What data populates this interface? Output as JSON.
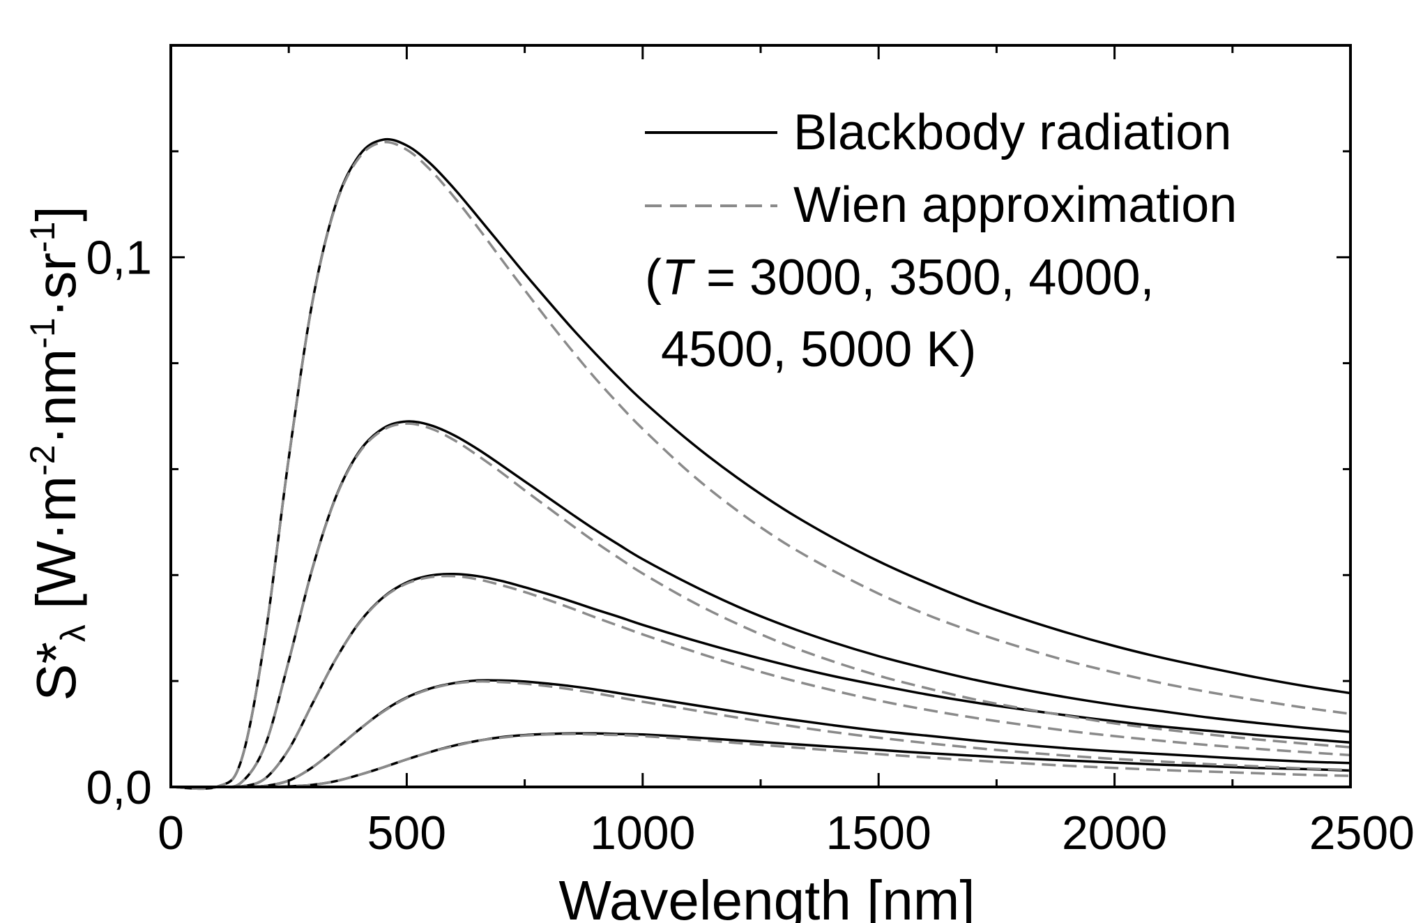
{
  "chart_data": {
    "type": "line",
    "title": "",
    "xlabel": "Wavelength [nm]",
    "ylabel": {
      "main": "S*",
      "sub": "λ",
      "units": " [W·m",
      "units_sup1": "-2",
      "units_mid": "·nm",
      "units_sup2": "-1",
      "units_mid2": "·sr",
      "units_sup3": "-1",
      "units_end": "]"
    },
    "xlim": [
      0,
      2500
    ],
    "ylim": [
      0,
      0.14
    ],
    "x_ticks": [
      0,
      500,
      1000,
      1500,
      2000,
      2500
    ],
    "x_tick_labels": [
      "0",
      "500",
      "1000",
      "1500",
      "2000",
      "2500"
    ],
    "y_ticks": [
      0.0,
      0.1
    ],
    "y_tick_labels": [
      "0,0",
      "0,1"
    ],
    "y_minor_step": 0.02,
    "x_minor_step": 250,
    "grid": false,
    "legend_position": "top-right",
    "legend": [
      {
        "name": "Blackbody radiation",
        "style": "solid",
        "color": "#000000"
      },
      {
        "name": "Wien approximation",
        "style": "dashed",
        "color": "#8a8a8a"
      }
    ],
    "annotation": {
      "open": "(",
      "italic": "T",
      "line1_rest": " = 3000, 3500, 4000,",
      "line2": "4500, 5000 K)"
    },
    "temperatures_K": [
      3000,
      3500,
      4000,
      4500,
      5000
    ],
    "x": [
      0,
      100,
      150,
      200,
      250,
      300,
      350,
      400,
      450,
      500,
      550,
      600,
      650,
      700,
      750,
      800,
      850,
      900,
      950,
      1000,
      1100,
      1200,
      1300,
      1400,
      1500,
      1600,
      1700,
      1800,
      1900,
      2000,
      2100,
      2200,
      2300,
      2400,
      2500
    ],
    "series": [
      {
        "temperature": 3000,
        "kind": "blackbody",
        "values": [
          0,
          0,
          0,
          0,
          0.0001,
          0.0004,
          0.0011,
          0.0023,
          0.0037,
          0.0052,
          0.0066,
          0.0078,
          0.0087,
          0.0094,
          0.0098,
          0.01,
          0.0101,
          0.0101,
          0.01,
          0.0099,
          0.0094,
          0.0088,
          0.0082,
          0.0076,
          0.007,
          0.0064,
          0.0059,
          0.0054,
          0.005,
          0.0046,
          0.0042,
          0.0039,
          0.0036,
          0.0034,
          0.0031
        ]
      },
      {
        "temperature": 3000,
        "kind": "wien",
        "values": [
          0,
          0,
          0,
          0,
          0.0001,
          0.0004,
          0.0011,
          0.0023,
          0.0037,
          0.0052,
          0.0066,
          0.0077,
          0.0087,
          0.0093,
          0.0097,
          0.0099,
          0.01,
          0.0099,
          0.0098,
          0.0096,
          0.009,
          0.0083,
          0.0076,
          0.0069,
          0.0062,
          0.0056,
          0.005,
          0.0045,
          0.004,
          0.0036,
          0.0032,
          0.0029,
          0.0026,
          0.0023,
          0.0021
        ]
      },
      {
        "temperature": 3500,
        "kind": "blackbody",
        "values": [
          0,
          0,
          0,
          0.0002,
          0.0012,
          0.0037,
          0.0072,
          0.0109,
          0.0143,
          0.0169,
          0.0186,
          0.0196,
          0.0201,
          0.0201,
          0.0199,
          0.0195,
          0.019,
          0.0184,
          0.0177,
          0.017,
          0.0156,
          0.0142,
          0.0129,
          0.0117,
          0.0106,
          0.0097,
          0.0088,
          0.008,
          0.0073,
          0.0067,
          0.0062,
          0.0057,
          0.0052,
          0.0048,
          0.0045
        ]
      },
      {
        "temperature": 3500,
        "kind": "wien",
        "values": [
          0,
          0,
          0,
          0.0002,
          0.0012,
          0.0037,
          0.0072,
          0.0109,
          0.0142,
          0.0168,
          0.0185,
          0.0195,
          0.0199,
          0.0198,
          0.0195,
          0.019,
          0.0184,
          0.0177,
          0.0169,
          0.0161,
          0.0146,
          0.0131,
          0.0117,
          0.0104,
          0.0093,
          0.0083,
          0.0074,
          0.0066,
          0.0059,
          0.0053,
          0.0048,
          0.0043,
          0.0039,
          0.0035,
          0.0032
        ]
      },
      {
        "temperature": 4000,
        "kind": "blackbody",
        "values": [
          0,
          0,
          0.0001,
          0.0016,
          0.0071,
          0.0157,
          0.0242,
          0.0311,
          0.0358,
          0.0386,
          0.0399,
          0.0402,
          0.0398,
          0.0389,
          0.0377,
          0.0364,
          0.035,
          0.0335,
          0.0321,
          0.0306,
          0.0279,
          0.0254,
          0.0231,
          0.021,
          0.0192,
          0.0175,
          0.016,
          0.0147,
          0.0135,
          0.0124,
          0.0114,
          0.0106,
          0.0098,
          0.0091,
          0.0084
        ]
      },
      {
        "temperature": 4000,
        "kind": "wien",
        "values": [
          0,
          0,
          0.0001,
          0.0016,
          0.0071,
          0.0157,
          0.0242,
          0.031,
          0.0357,
          0.0384,
          0.0396,
          0.0398,
          0.0392,
          0.0381,
          0.0368,
          0.0353,
          0.0337,
          0.032,
          0.0304,
          0.0288,
          0.0258,
          0.023,
          0.0205,
          0.0183,
          0.0163,
          0.0146,
          0.0131,
          0.0118,
          0.0106,
          0.0096,
          0.0087,
          0.0079,
          0.0072,
          0.0066,
          0.006
        ]
      },
      {
        "temperature": 4500,
        "kind": "blackbody",
        "values": [
          0,
          0,
          0.0009,
          0.0079,
          0.0238,
          0.0412,
          0.0548,
          0.0634,
          0.0677,
          0.069,
          0.0683,
          0.0664,
          0.0638,
          0.0608,
          0.0577,
          0.0546,
          0.0515,
          0.0485,
          0.0457,
          0.043,
          0.0383,
          0.0341,
          0.0305,
          0.0274,
          0.0247,
          0.0224,
          0.0203,
          0.0185,
          0.0169,
          0.0155,
          0.0143,
          0.0131,
          0.0121,
          0.0112,
          0.0104
        ]
      },
      {
        "temperature": 4500,
        "kind": "wien",
        "values": [
          0,
          0,
          0.0009,
          0.0079,
          0.0238,
          0.0411,
          0.0547,
          0.0632,
          0.0674,
          0.0686,
          0.0677,
          0.0655,
          0.0626,
          0.0594,
          0.056,
          0.0527,
          0.0494,
          0.0462,
          0.0432,
          0.0403,
          0.0352,
          0.0308,
          0.027,
          0.0238,
          0.021,
          0.0187,
          0.0166,
          0.0149,
          0.0134,
          0.012,
          0.0109,
          0.0099,
          0.009,
          0.0082,
          0.0075
        ]
      },
      {
        "temperature": 5000,
        "kind": "blackbody",
        "values": [
          0,
          0.0001,
          0.0052,
          0.0284,
          0.0621,
          0.0915,
          0.1101,
          0.1193,
          0.1222,
          0.1211,
          0.1177,
          0.113,
          0.1077,
          0.1023,
          0.0969,
          0.0917,
          0.0866,
          0.0818,
          0.0772,
          0.0729,
          0.0652,
          0.0584,
          0.0524,
          0.0472,
          0.0426,
          0.0386,
          0.035,
          0.0319,
          0.0291,
          0.0266,
          0.0244,
          0.0225,
          0.0207,
          0.0191,
          0.0177
        ]
      },
      {
        "temperature": 5000,
        "kind": "wien",
        "values": [
          0,
          0.0001,
          0.0052,
          0.0284,
          0.0621,
          0.0914,
          0.1099,
          0.1189,
          0.1217,
          0.1203,
          0.1165,
          0.1114,
          0.1057,
          0.0997,
          0.0938,
          0.088,
          0.0824,
          0.0771,
          0.0722,
          0.0676,
          0.0593,
          0.0522,
          0.0461,
          0.041,
          0.0365,
          0.0326,
          0.0293,
          0.0264,
          0.0238,
          0.0216,
          0.0196,
          0.0179,
          0.0164,
          0.015,
          0.0138
        ]
      }
    ]
  }
}
